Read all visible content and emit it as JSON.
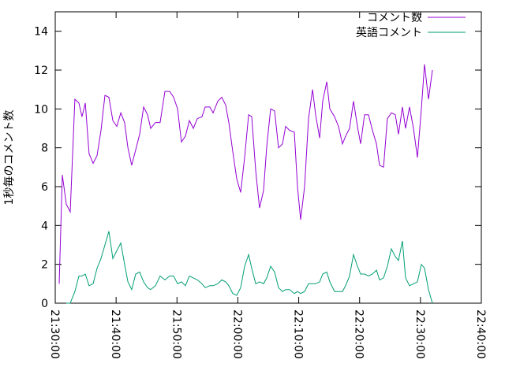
{
  "chart_data": {
    "type": "line",
    "y_label": "1秒毎のコメント数",
    "legend_position": "upper right",
    "xlim": [
      "21:30:00",
      "22:40:00"
    ],
    "xticks": [
      "21:30:00",
      "21:40:00",
      "21:50:00",
      "22:00:00",
      "22:10:00",
      "22:20:00",
      "22:30:00",
      "22:40:00"
    ],
    "ylim": [
      0,
      15
    ],
    "yticks": [
      0,
      2,
      4,
      6,
      8,
      10,
      12,
      14
    ],
    "x": [
      "21:30:39",
      "21:31:10",
      "21:31:49",
      "21:32:28",
      "21:33:14",
      "21:33:53",
      "21:34:24",
      "21:34:56",
      "21:35:34",
      "21:36:13",
      "21:36:52",
      "21:37:31",
      "21:38:10",
      "21:38:49",
      "21:39:28",
      "21:40:07",
      "21:40:46",
      "21:41:24",
      "21:41:56",
      "21:42:34",
      "21:43:13",
      "21:43:52",
      "21:44:31",
      "21:45:10",
      "21:45:41",
      "21:46:28",
      "21:47:14",
      "21:48:01",
      "21:48:48",
      "21:49:27",
      "21:50:06",
      "21:50:44",
      "21:51:23",
      "21:52:02",
      "21:52:41",
      "21:53:20",
      "21:54:07",
      "21:54:38",
      "21:55:24",
      "21:55:56",
      "21:56:42",
      "21:57:21",
      "21:58:00",
      "21:58:31",
      "21:59:10",
      "21:59:49",
      "22:00:28",
      "22:01:07",
      "22:01:46",
      "22:02:17",
      "22:02:56",
      "22:03:34",
      "22:04:13",
      "22:04:45",
      "22:05:23",
      "22:06:02",
      "22:06:41",
      "22:07:20",
      "22:07:51",
      "22:08:30",
      "22:09:17",
      "22:09:48",
      "22:10:19",
      "22:10:58",
      "22:11:37",
      "22:12:16",
      "22:12:47",
      "22:13:26",
      "22:13:57",
      "22:14:36",
      "22:15:07",
      "22:15:53",
      "22:16:32",
      "22:17:11",
      "22:17:42",
      "22:18:21",
      "22:19:00",
      "22:19:39",
      "22:20:10",
      "22:20:49",
      "22:21:28",
      "22:22:07",
      "22:22:46",
      "22:23:17",
      "22:23:56",
      "22:24:34",
      "22:25:13",
      "22:25:52",
      "22:26:23",
      "22:27:02",
      "22:27:33",
      "22:28:12",
      "22:28:51",
      "22:29:30",
      "22:30:09",
      "22:30:40",
      "22:31:19",
      "22:31:58"
    ],
    "series": [
      {
        "name": "コメント数",
        "color": "#9400d3",
        "values": [
          1.0,
          6.6,
          5.1,
          4.7,
          10.5,
          10.3,
          9.6,
          10.3,
          7.7,
          7.2,
          7.6,
          8.9,
          10.7,
          10.6,
          9.4,
          9.1,
          9.8,
          9.3,
          8.0,
          7.1,
          7.9,
          8.7,
          10.1,
          9.7,
          9.0,
          9.3,
          9.3,
          10.9,
          10.9,
          10.6,
          10.0,
          8.3,
          8.6,
          9.4,
          9.0,
          9.5,
          9.6,
          10.1,
          10.1,
          9.8,
          10.4,
          10.6,
          10.2,
          9.3,
          7.8,
          6.4,
          5.7,
          7.5,
          9.7,
          9.6,
          6.8,
          4.9,
          5.8,
          8.1,
          10.0,
          9.9,
          8.0,
          8.2,
          9.1,
          8.9,
          8.8,
          6.0,
          4.3,
          6.0,
          9.5,
          11.0,
          9.7,
          8.5,
          10.4,
          11.4,
          10.0,
          9.6,
          9.1,
          8.2,
          8.6,
          9.0,
          10.4,
          9.1,
          8.2,
          9.7,
          9.7,
          8.9,
          8.2,
          7.1,
          7.0,
          9.5,
          9.8,
          9.7,
          8.7,
          10.1,
          9.0,
          10.1,
          9.0,
          7.5,
          10.0,
          12.3,
          10.5,
          12.0
        ]
      },
      {
        "name": "英語コメント",
        "color": "#009e73",
        "values": [
          null,
          null,
          0.0,
          0.0,
          0.6,
          1.4,
          1.4,
          1.5,
          0.9,
          1.0,
          1.8,
          2.3,
          3.0,
          3.7,
          2.3,
          2.7,
          3.1,
          2.0,
          1.1,
          0.7,
          1.5,
          1.6,
          1.1,
          0.8,
          0.7,
          0.9,
          1.4,
          1.2,
          1.4,
          1.4,
          1.0,
          1.1,
          0.9,
          1.4,
          1.3,
          1.2,
          1.0,
          0.8,
          0.9,
          0.9,
          1.0,
          1.2,
          1.1,
          0.9,
          0.5,
          0.4,
          0.8,
          1.9,
          2.5,
          1.8,
          1.0,
          1.1,
          1.0,
          1.3,
          1.9,
          1.6,
          0.8,
          0.6,
          0.7,
          0.7,
          0.5,
          0.6,
          0.5,
          0.6,
          1.0,
          1.0,
          1.0,
          1.1,
          1.5,
          1.6,
          1.1,
          0.6,
          0.6,
          0.6,
          0.9,
          1.4,
          2.5,
          1.9,
          1.5,
          1.5,
          1.4,
          1.5,
          1.7,
          1.2,
          1.3,
          1.9,
          2.8,
          2.4,
          2.2,
          3.2,
          1.3,
          0.9,
          1.0,
          1.1,
          2.0,
          1.8,
          0.7,
          0.0
        ]
      }
    ]
  }
}
